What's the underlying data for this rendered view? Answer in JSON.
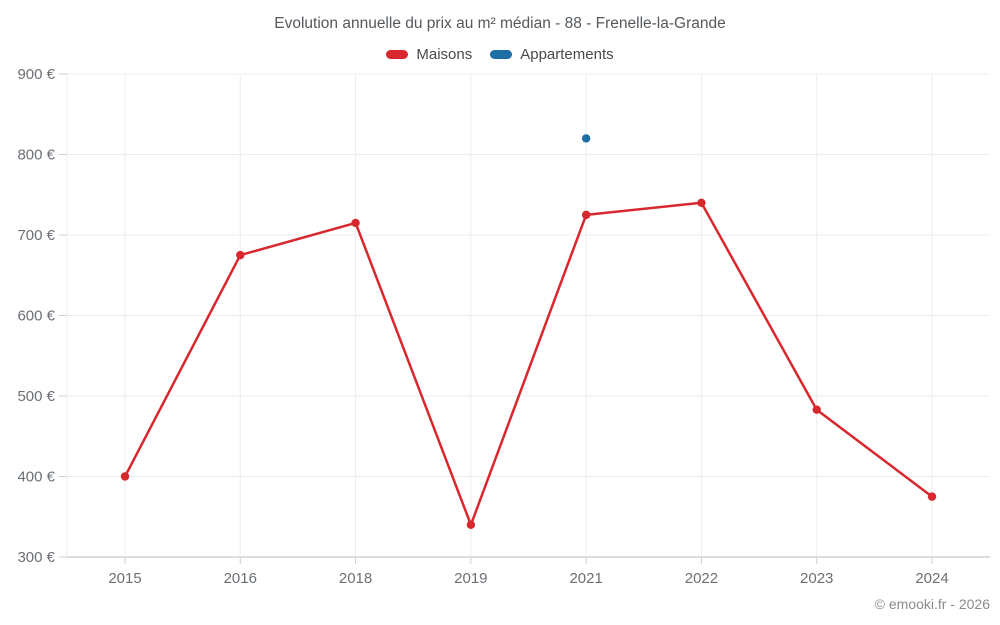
{
  "title": "Evolution annuelle du prix au m² médian - 88 - Frenelle-la-Grande",
  "legend": {
    "items": [
      {
        "label": "Maisons"
      },
      {
        "label": "Appartements"
      }
    ]
  },
  "copyright": "© emooki.fr - 2026",
  "chart_data": {
    "type": "line",
    "title": "Evolution annuelle du prix au m² médian - 88 - Frenelle-la-Grande",
    "categories": [
      "2015",
      "2016",
      "2018",
      "2019",
      "2021",
      "2022",
      "2023",
      "2024"
    ],
    "series": [
      {
        "name": "Maisons",
        "color": "#d8282e",
        "values": [
          400,
          675,
          715,
          340,
          725,
          740,
          483,
          375
        ]
      },
      {
        "name": "Appartements",
        "color": "#1c6ea4",
        "values": [
          null,
          null,
          null,
          null,
          820,
          null,
          null,
          null
        ]
      }
    ],
    "xlabel": "",
    "ylabel": "",
    "ylim": [
      300,
      900
    ],
    "y_ticks": [
      300,
      400,
      500,
      600,
      700,
      800,
      900
    ],
    "y_tick_suffix": " €",
    "grid": true,
    "legend_position": "top"
  }
}
